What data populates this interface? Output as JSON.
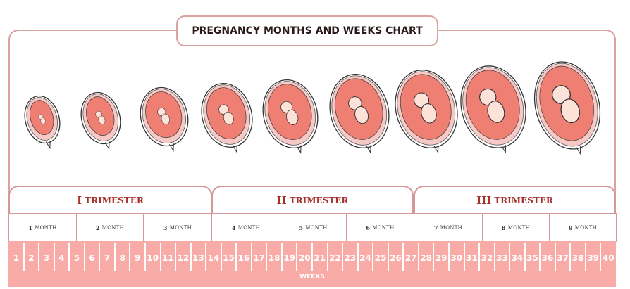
{
  "title": "PREGNANCY MONTHS AND WEEKS CHART",
  "trimesters": [
    {
      "numeral": "I",
      "label": "TRIMESTER"
    },
    {
      "numeral": "II",
      "label": "TRIMESTER"
    },
    {
      "numeral": "III",
      "label": "TRIMESTER"
    }
  ],
  "months": [
    {
      "number": "1",
      "label": "MONTH"
    },
    {
      "number": "2",
      "label": "MONTH"
    },
    {
      "number": "3",
      "label": "MONTH"
    },
    {
      "number": "4",
      "label": "MONTH"
    },
    {
      "number": "5",
      "label": "MONTH"
    },
    {
      "number": "6",
      "label": "MONTH"
    },
    {
      "number": "7",
      "label": "MONTH"
    },
    {
      "number": "8",
      "label": "MONTH"
    },
    {
      "number": "9",
      "label": "MONTH"
    }
  ],
  "weeks": [
    "1",
    "2",
    "3",
    "4",
    "5",
    "6",
    "7",
    "8",
    "9",
    "10",
    "11",
    "12",
    "13",
    "14",
    "15",
    "16",
    "17",
    "18",
    "19",
    "20",
    "21",
    "22",
    "23",
    "24",
    "25",
    "26",
    "27",
    "28",
    "29",
    "30",
    "31",
    "32",
    "33",
    "34",
    "35",
    "36",
    "37",
    "38",
    "39",
    "40"
  ],
  "weeks_label": "WEEKS",
  "colors": {
    "band": "#f8aba7",
    "border": "#d59896",
    "trimester_text": "#a5322c",
    "womb_outer": "#f7c9c6",
    "womb_inner": "#ee7f72",
    "fetus": "#fde2da"
  }
}
